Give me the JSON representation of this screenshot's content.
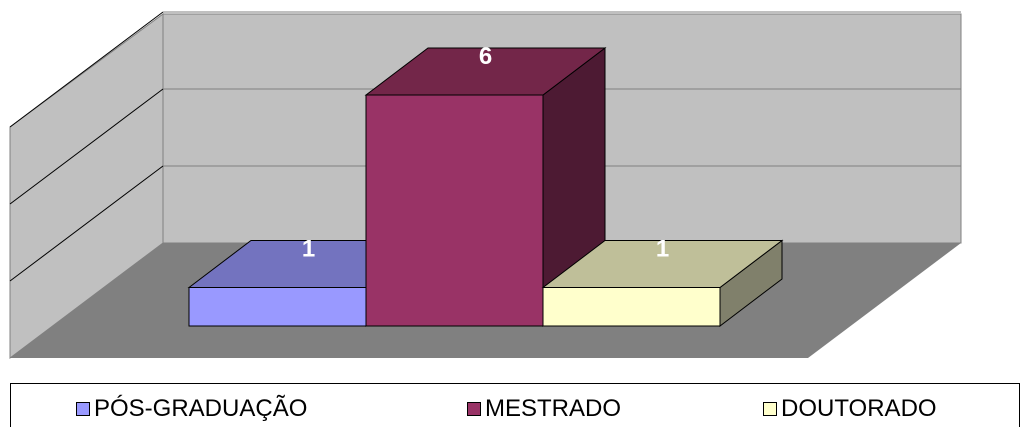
{
  "chart_data": {
    "type": "bar",
    "categories": [
      "PÓS-GRADUAÇÃO",
      "MESTRADO",
      "DOUTORADO"
    ],
    "values": [
      1,
      6,
      1
    ],
    "data_labels": [
      "1",
      "6",
      "1"
    ],
    "ylim": [
      0,
      8
    ],
    "grid": true,
    "legend": "bottom",
    "three_d": true,
    "colors": {
      "front": [
        "#9999ff",
        "#993366",
        "#ffffcc"
      ],
      "top": [
        "#7373bf",
        "#732649",
        "#bfbf99"
      ],
      "side": [
        "#5c5c99",
        "#4d1a33",
        "#80806b"
      ],
      "wall": "#c0c0c0",
      "floor": "#808080"
    }
  },
  "legend": {
    "items": [
      {
        "label": "PÓS-GRADUAÇÃO",
        "color": "#9999ff"
      },
      {
        "label": "MESTRADO",
        "color": "#993366"
      },
      {
        "label": "DOUTORADO",
        "color": "#ffffcc"
      }
    ]
  }
}
